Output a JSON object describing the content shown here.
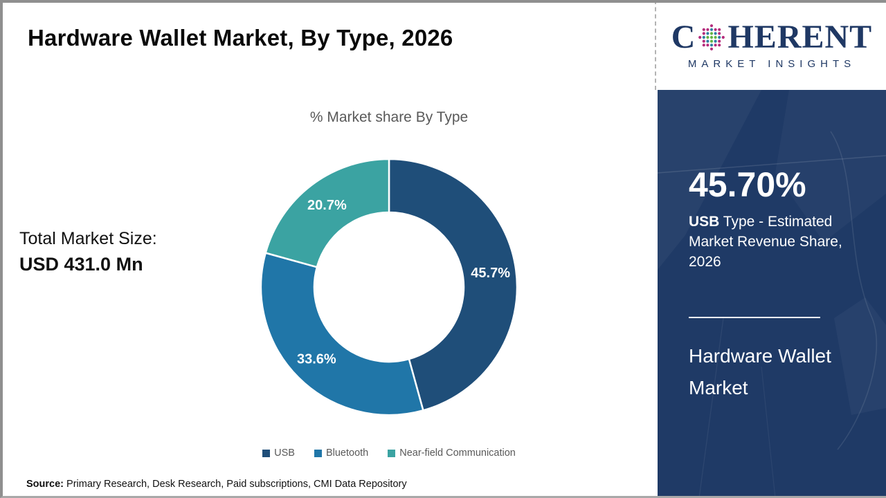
{
  "header": {
    "title": "Hardware Wallet Market, By Type, 2026"
  },
  "logo": {
    "prefix": "C",
    "suffix": "HERENT",
    "subtitle": "MARKET INSIGHTS",
    "text_color": "#1f3864"
  },
  "chart_data": {
    "type": "pie",
    "donut": true,
    "title": "% Market share By Type",
    "categories": [
      "USB",
      "Bluetooth",
      "Near-field Communication"
    ],
    "values": [
      45.7,
      33.6,
      20.7
    ],
    "labels": [
      "45.7%",
      "33.6%",
      "20.7%"
    ],
    "colors": [
      "#1f4e79",
      "#2076a8",
      "#3ba3a2"
    ],
    "start_angle_deg": 0,
    "direction": "clockwise",
    "legend_position": "bottom",
    "label_color": "#ffffff"
  },
  "total_market": {
    "label": "Total Market Size:",
    "value": "USD 431.0 Mn"
  },
  "sidebar": {
    "stat_value": "45.70%",
    "stat_label_bold": "USB",
    "stat_label_rest": " Type - Estimated Market Revenue Share, 2026",
    "panel_title": "Hardware Wallet Market",
    "background": "#1f3a66"
  },
  "source": {
    "label": "Source:",
    "text": " Primary Research, Desk Research, Paid subscriptions, CMI Data Repository"
  }
}
